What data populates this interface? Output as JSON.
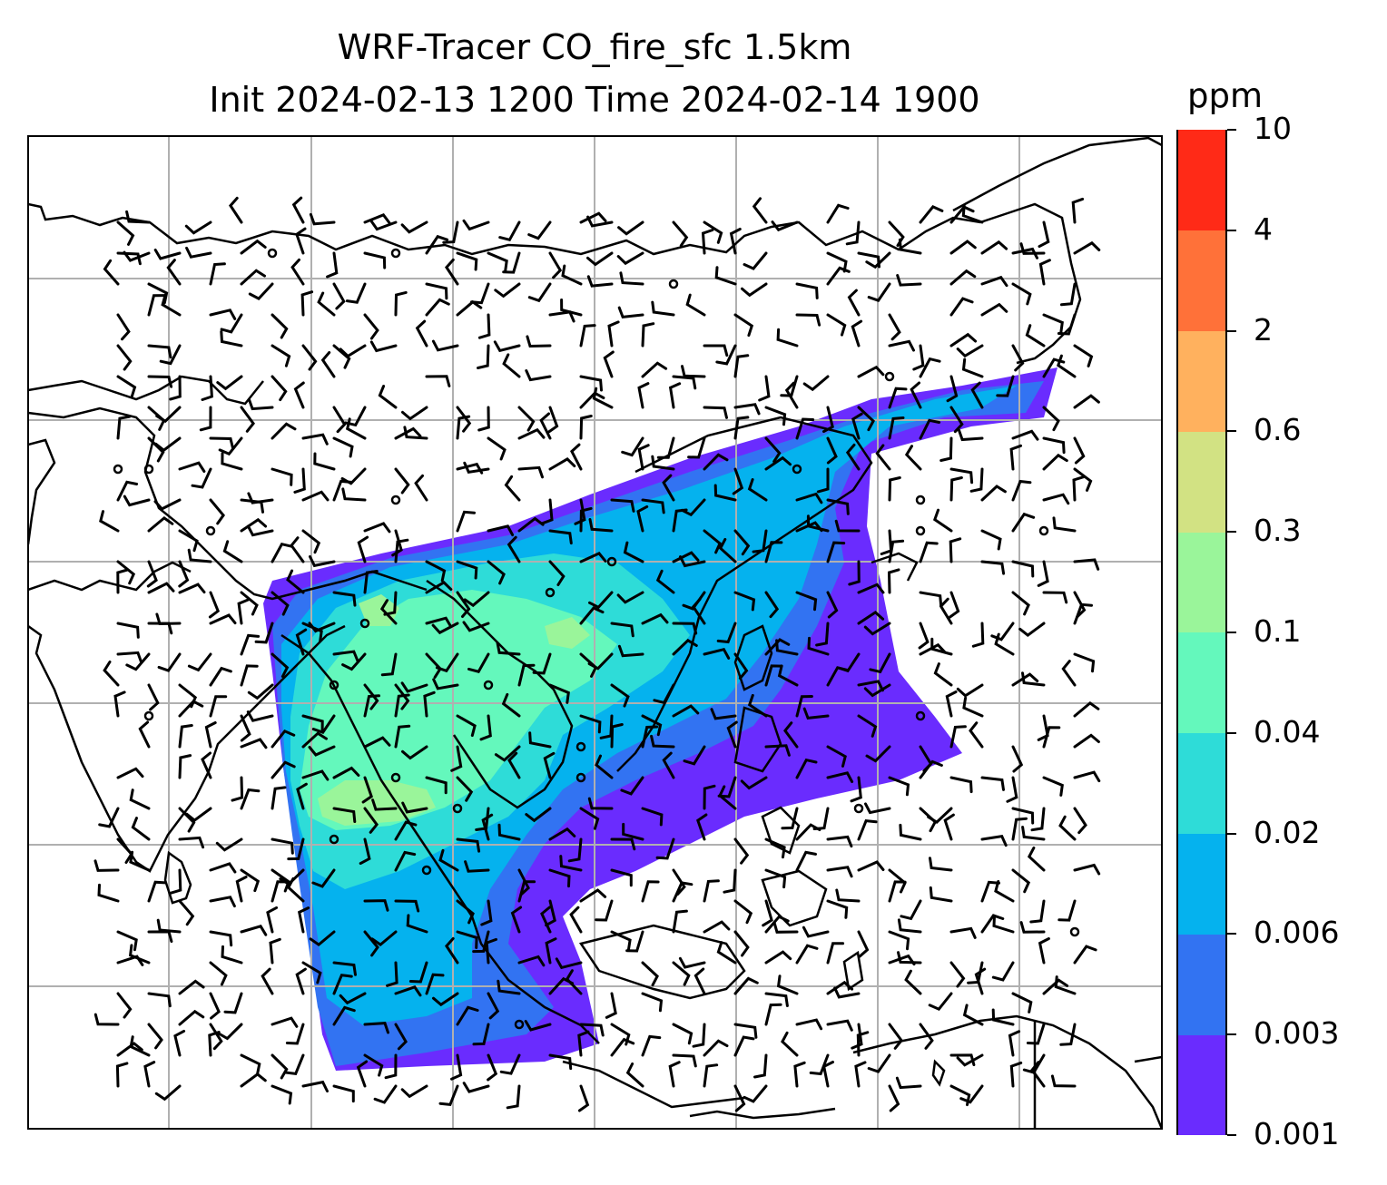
{
  "figure": {
    "title_line1": "WRF-Tracer CO_fire_sfc 1.5km",
    "title_line2": "Init 2024-02-13 1200 Time 2024-02-14 1900"
  },
  "colorbar": {
    "unit": "ppm",
    "levels": [
      "0.001",
      "0.003",
      "0.006",
      "0.02",
      "0.04",
      "0.1",
      "0.3",
      "0.6",
      "2",
      "4",
      "10"
    ],
    "colors": [
      "#6a2cfe",
      "#3273f2",
      "#05b2ee",
      "#2edcd8",
      "#64f8bc",
      "#9af59a",
      "#d2e283",
      "#ffb15e",
      "#ff7139",
      "#ff2a17"
    ]
  },
  "map": {
    "gridline_color": "#b0b0b0",
    "coastline_color": "#000000",
    "calm_marker": "circle-icon",
    "barb_marker": "wind-barb-icon"
  }
}
